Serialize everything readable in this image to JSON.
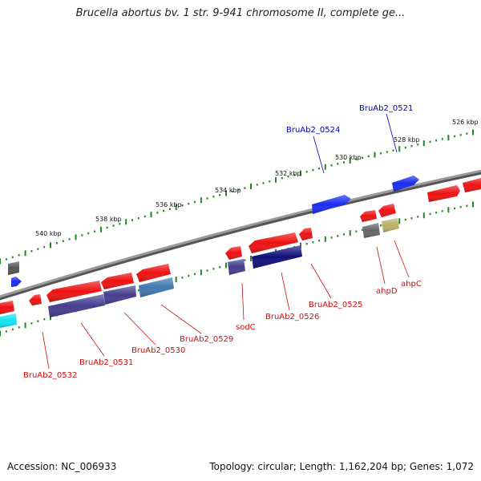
{
  "title": "Brucella abortus bv. 1 str. 9-941 chromosome II, complete ge...",
  "footer": {
    "accession": "Accession: NC_006933",
    "summary": "Topology: circular; Length: 1,162,204 bp; Genes: 1,072"
  },
  "colors": {
    "backbone": "#8a8a8a",
    "tick": "#1f8a1f",
    "label_forward": "#0000bb",
    "label_reverse": "#cc1111",
    "gene_red": "#ee1111",
    "gene_blue": "#1a2cf0",
    "gene_navy": "#10107a",
    "gene_indigo": "#453d8e",
    "gene_steel": "#3f78b0",
    "gene_gray": "#666666",
    "gene_olive": "#b9b06a",
    "gene_cyan": "#10e6f0"
  },
  "kbp_scale": {
    "labels": [
      "526 kbp",
      "528 kbp",
      "530 kbp",
      "532 kbp",
      "534 kbp",
      "536 kbp",
      "538 kbp",
      "540 kbp"
    ]
  },
  "gene_labels": {
    "forward": [
      "BruAb2_0521",
      "BruAb2_0524"
    ],
    "reverse": [
      "ahpC",
      "ahpD",
      "BruAb2_0525",
      "BruAb2_0526",
      "sodC",
      "BruAb2_0529",
      "BruAb2_0530",
      "BruAb2_0531",
      "BruAb2_0532"
    ]
  }
}
